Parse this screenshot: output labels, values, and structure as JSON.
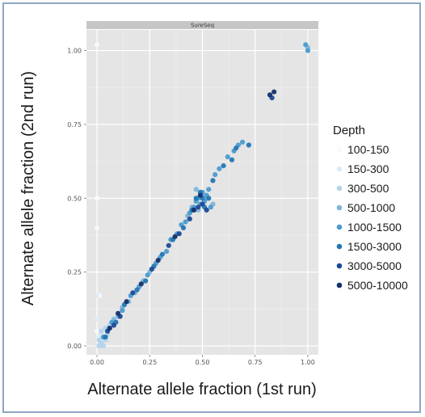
{
  "chart_data": {
    "type": "scatter",
    "panel_label": "SureSeq",
    "xlabel": "Alternate allele fraction (1st run)",
    "ylabel": "Alternate allele fraction (2nd run)",
    "xlim": [
      -0.05,
      1.05
    ],
    "ylim": [
      -0.03,
      1.07
    ],
    "x_ticks": [
      "0.00",
      "0.25",
      "0.50",
      "0.75",
      "1.00"
    ],
    "y_ticks": [
      "0.00",
      "0.25",
      "0.50",
      "0.75",
      "1.00"
    ],
    "x_tick_values": [
      0,
      0.25,
      0.5,
      0.75,
      1.0
    ],
    "y_tick_values": [
      0,
      0.25,
      0.5,
      0.75,
      1.0
    ],
    "grid": true,
    "legend": {
      "title": "Depth",
      "position": "right",
      "entries": [
        {
          "label": "100-150",
          "color": "#f7fbff"
        },
        {
          "label": "150-300",
          "color": "#deebf7"
        },
        {
          "label": "300-500",
          "color": "#b3d3ea"
        },
        {
          "label": "500-1000",
          "color": "#7fb6da"
        },
        {
          "label": "1000-1500",
          "color": "#4a9bcf"
        },
        {
          "label": "1500-3000",
          "color": "#2277b4"
        },
        {
          "label": "3000-5000",
          "color": "#1c4a96"
        },
        {
          "label": "5000-10000",
          "color": "#13306a"
        }
      ]
    },
    "series": [
      {
        "name": "100-150",
        "x": [
          0.0,
          0.0,
          0.0,
          0.0,
          0.01,
          0.0
        ],
        "y": [
          1.02,
          0.5,
          0.4,
          0.09,
          0.17,
          0.05
        ]
      },
      {
        "name": "150-300",
        "x": [
          0.0,
          0.01,
          0.02,
          0.0,
          0.03,
          0.01,
          0.02,
          0.0
        ],
        "y": [
          0.17,
          0.02,
          0.01,
          0.0,
          0.02,
          0.03,
          0.05,
          0.09
        ]
      },
      {
        "name": "300-500",
        "x": [
          0.01,
          0.02,
          0.03,
          0.04,
          0.02,
          0.05,
          0.06,
          0.03,
          0.01,
          0.04
        ],
        "y": [
          0.0,
          0.01,
          0.03,
          0.02,
          0.05,
          0.04,
          0.07,
          0.0,
          0.02,
          0.06
        ]
      },
      {
        "name": "500-1000",
        "x": [
          0.05,
          0.06,
          0.08,
          0.1,
          0.12,
          0.15,
          0.18,
          0.22,
          0.25,
          0.45,
          0.48,
          0.5,
          0.52,
          0.47,
          0.55,
          0.43,
          1.0
        ],
        "y": [
          0.05,
          0.06,
          0.09,
          0.1,
          0.13,
          0.15,
          0.18,
          0.22,
          0.25,
          0.47,
          0.46,
          0.51,
          0.5,
          0.53,
          0.48,
          0.44,
          1.01
        ]
      },
      {
        "name": "1000-1500",
        "x": [
          0.03,
          0.07,
          0.12,
          0.16,
          0.2,
          0.24,
          0.28,
          0.3,
          0.33,
          0.35,
          0.38,
          0.4,
          0.42,
          0.44,
          0.46,
          0.47,
          0.48,
          0.49,
          0.5,
          0.51,
          0.52,
          0.53,
          0.54,
          0.56,
          0.58,
          0.62,
          0.65,
          0.67,
          0.69,
          1.0,
          0.99
        ],
        "y": [
          0.03,
          0.08,
          0.12,
          0.17,
          0.2,
          0.24,
          0.28,
          0.3,
          0.32,
          0.36,
          0.38,
          0.41,
          0.42,
          0.45,
          0.47,
          0.49,
          0.5,
          0.48,
          0.52,
          0.49,
          0.51,
          0.53,
          0.47,
          0.58,
          0.6,
          0.64,
          0.66,
          0.68,
          0.69,
          1.0,
          1.02
        ]
      },
      {
        "name": "1500-3000",
        "x": [
          0.04,
          0.09,
          0.13,
          0.19,
          0.23,
          0.27,
          0.31,
          0.36,
          0.41,
          0.45,
          0.47,
          0.49,
          0.5,
          0.51,
          0.53,
          0.55,
          0.6,
          0.64,
          0.66,
          0.72
        ],
        "y": [
          0.03,
          0.08,
          0.14,
          0.19,
          0.22,
          0.27,
          0.31,
          0.36,
          0.4,
          0.46,
          0.5,
          0.52,
          0.5,
          0.47,
          0.5,
          0.56,
          0.61,
          0.63,
          0.67,
          0.68
        ]
      },
      {
        "name": "3000-5000",
        "x": [
          0.05,
          0.08,
          0.11,
          0.17,
          0.26,
          0.34,
          0.39,
          0.44,
          0.48,
          0.5,
          0.52,
          0.83
        ],
        "y": [
          0.05,
          0.07,
          0.1,
          0.18,
          0.26,
          0.34,
          0.38,
          0.43,
          0.47,
          0.48,
          0.46,
          0.84
        ]
      },
      {
        "name": "5000-10000",
        "x": [
          0.06,
          0.1,
          0.14,
          0.21,
          0.29,
          0.37,
          0.46,
          0.49,
          0.82,
          0.84
        ],
        "y": [
          0.06,
          0.11,
          0.15,
          0.21,
          0.29,
          0.37,
          0.46,
          0.51,
          0.85,
          0.86
        ]
      }
    ]
  }
}
